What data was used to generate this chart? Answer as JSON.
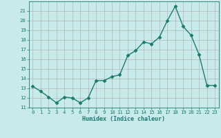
{
  "x": [
    0,
    1,
    2,
    3,
    4,
    5,
    6,
    7,
    8,
    9,
    10,
    11,
    12,
    13,
    14,
    15,
    16,
    17,
    18,
    19,
    20,
    21,
    22,
    23
  ],
  "y": [
    13.2,
    12.7,
    12.1,
    11.5,
    12.1,
    12.0,
    11.5,
    12.0,
    13.8,
    13.8,
    14.2,
    14.4,
    16.4,
    16.9,
    17.8,
    17.6,
    18.3,
    20.0,
    21.5,
    19.4,
    18.5,
    16.5,
    13.3,
    13.3
  ],
  "xlabel": "Humidex (Indice chaleur)",
  "ylim": [
    11,
    22
  ],
  "xlim": [
    -0.5,
    23.5
  ],
  "yticks": [
    11,
    12,
    13,
    14,
    15,
    16,
    17,
    18,
    19,
    20,
    21
  ],
  "xticks": [
    0,
    1,
    2,
    3,
    4,
    5,
    6,
    7,
    8,
    9,
    10,
    11,
    12,
    13,
    14,
    15,
    16,
    17,
    18,
    19,
    20,
    21,
    22,
    23
  ],
  "line_color": "#1a7a6e",
  "marker_color": "#1a7a6e",
  "bg_color": "#c8eaea",
  "grid_color": "#b0b8b8",
  "tick_color": "#1a7a6e",
  "label_color": "#1a7a6e",
  "font_name": "monospace"
}
